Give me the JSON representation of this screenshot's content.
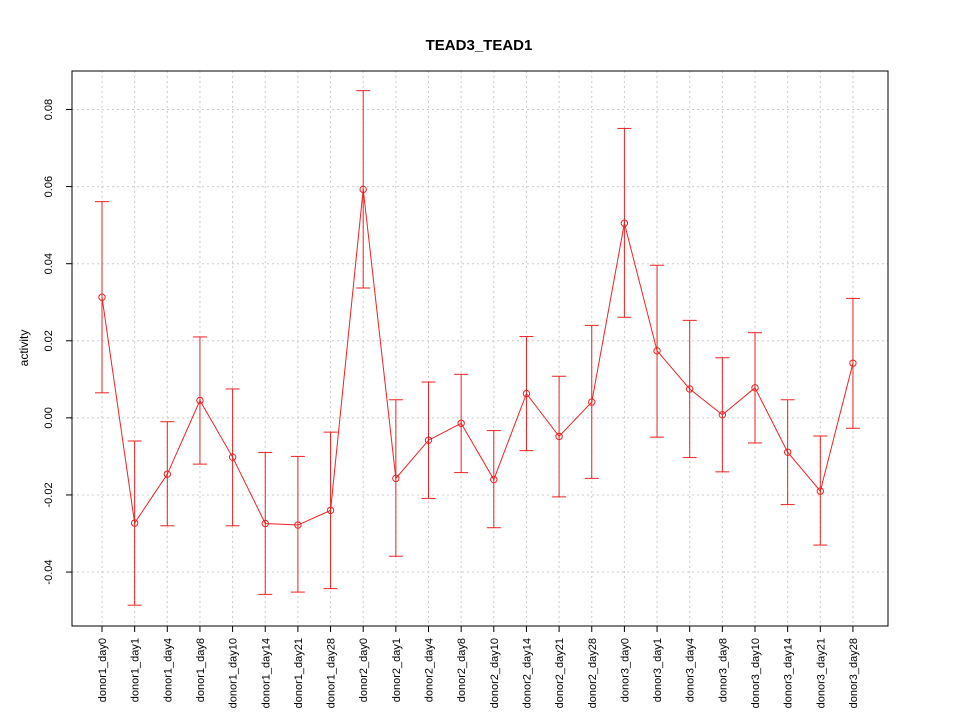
{
  "chart_data": {
    "type": "line",
    "title": "TEAD3_TEAD1",
    "xlabel": "",
    "ylabel": "activity",
    "ylim": [
      -0.054,
      0.09
    ],
    "yticks": [
      -0.04,
      -0.02,
      0.0,
      0.02,
      0.04,
      0.06,
      0.08
    ],
    "ytick_labels": [
      "-0.04",
      "-0.02",
      "0.00",
      "0.02",
      "0.04",
      "0.06",
      "0.08"
    ],
    "grid": true,
    "line_color": "#ee2222",
    "grid_color": "#cccccc",
    "categories": [
      "donor1_day0",
      "donor1_day1",
      "donor1_day4",
      "donor1_day8",
      "donor1_day10",
      "donor1_day14",
      "donor1_day21",
      "donor1_day28",
      "donor2_day0",
      "donor2_day1",
      "donor2_day4",
      "donor2_day8",
      "donor2_day10",
      "donor2_day14",
      "donor2_day21",
      "donor2_day28",
      "donor3_day0",
      "donor3_day1",
      "donor3_day4",
      "donor3_day8",
      "donor3_day10",
      "donor3_day14",
      "donor3_day21",
      "donor3_day28"
    ],
    "values": [
      0.0313,
      -0.0273,
      -0.0146,
      0.0045,
      -0.0102,
      -0.0274,
      -0.0278,
      -0.024,
      0.0593,
      -0.0157,
      -0.0058,
      -0.0014,
      -0.016,
      0.0063,
      -0.0048,
      0.0041,
      0.0505,
      0.0174,
      0.0075,
      0.0008,
      0.0078,
      -0.0089,
      -0.019,
      0.0142
    ],
    "upper": [
      0.0561,
      -0.006,
      -0.001,
      0.021,
      0.0075,
      -0.009,
      -0.01,
      -0.0037,
      0.0849,
      0.0047,
      0.0093,
      0.0113,
      -0.0033,
      0.0211,
      0.0108,
      0.024,
      0.0751,
      0.0396,
      0.0253,
      0.0156,
      0.0221,
      0.0047,
      -0.0047,
      0.031
    ],
    "lower": [
      0.0065,
      -0.0486,
      -0.028,
      -0.012,
      -0.028,
      -0.0458,
      -0.0452,
      -0.0443,
      0.0337,
      -0.0359,
      -0.0209,
      -0.0142,
      -0.0285,
      -0.0085,
      -0.0205,
      -0.0157,
      0.0261,
      -0.005,
      -0.0103,
      -0.014,
      -0.0065,
      -0.0225,
      -0.033,
      -0.0027
    ]
  }
}
